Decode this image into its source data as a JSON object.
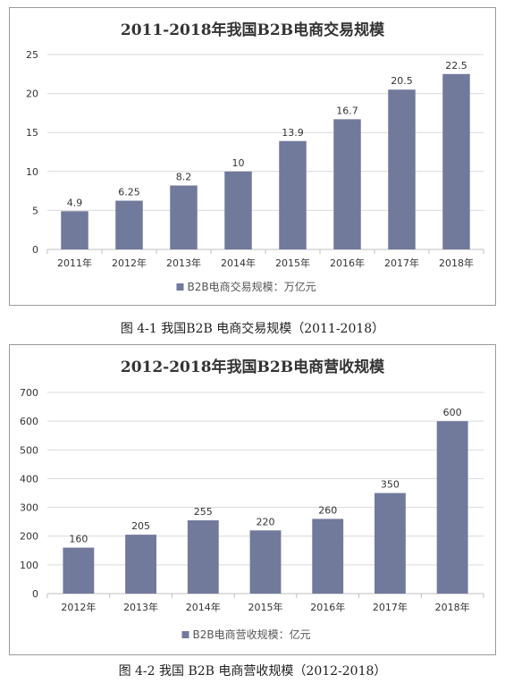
{
  "chart_data": [
    {
      "type": "bar",
      "title": "2011-2018年我国B2B电商交易规模",
      "categories": [
        "2011年",
        "2012年",
        "2013年",
        "2014年",
        "2015年",
        "2016年",
        "2017年",
        "2018年"
      ],
      "series": [
        {
          "name": "B2B电商交易规模：万亿元",
          "values": [
            4.9,
            6.25,
            8.2,
            10,
            13.9,
            16.7,
            20.5,
            22.5
          ]
        }
      ],
      "data_labels": [
        "4.9",
        "6.25",
        "8.2",
        "10",
        "13.9",
        "16.7",
        "20.5",
        "22.5"
      ],
      "y_ticks": [
        0,
        5,
        10,
        15,
        20,
        25
      ],
      "ylim": [
        0,
        25
      ],
      "grid": true,
      "legend_position": "bottom",
      "bar_color": "#717a9b"
    },
    {
      "type": "bar",
      "title": "2012-2018年我国B2B电商营收规模",
      "categories": [
        "2012年",
        "2013年",
        "2014年",
        "2015年",
        "2016年",
        "2017年",
        "2018年"
      ],
      "series": [
        {
          "name": "B2B电商营收规模：亿元",
          "values": [
            160,
            205,
            255,
            220,
            260,
            350,
            600
          ]
        }
      ],
      "data_labels": [
        "160",
        "205",
        "255",
        "220",
        "260",
        "350",
        "600"
      ],
      "y_ticks": [
        0,
        100,
        200,
        300,
        400,
        500,
        600,
        700
      ],
      "ylim": [
        0,
        700
      ],
      "grid": true,
      "legend_position": "bottom",
      "bar_color": "#717a9b"
    }
  ],
  "captions": [
    "图 4-1 我国B2B 电商交易规模（2011-2018）",
    "图 4-2 我国 B2B 电商营收规模（2012-2018）"
  ]
}
